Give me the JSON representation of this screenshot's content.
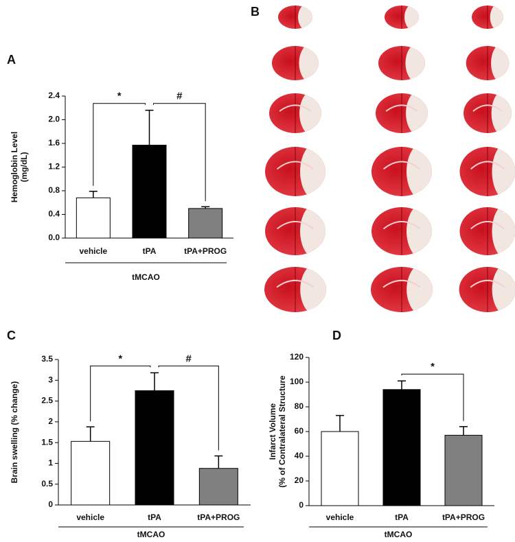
{
  "panel_b": {
    "label": "B"
  },
  "chart_data": [
    {
      "type": "bar",
      "panel": "A",
      "ylabel": [
        "Hemoglobin Level",
        "(mg/dL)"
      ],
      "categories": [
        "vehicle",
        "tPA",
        "tPA+PROG"
      ],
      "values": [
        0.68,
        1.57,
        0.5
      ],
      "errors": [
        0.11,
        0.59,
        0.03
      ],
      "colors": [
        "#ffffff",
        "#000000",
        "#808080"
      ],
      "group_label": "tMCAO",
      "ylim": [
        0,
        2.4
      ],
      "yticks": [
        {
          "value": 0,
          "label": "0.0"
        },
        0.4,
        0.8,
        1.2,
        1.6,
        {
          "value": 2,
          "label": "2.0"
        },
        2.4
      ],
      "annotations": [
        {
          "text": "*",
          "between": [
            "vehicle",
            "tPA"
          ]
        },
        {
          "text": "#",
          "between": [
            "tPA",
            "tPA+PROG"
          ]
        }
      ]
    },
    {
      "type": "bar",
      "panel": "C",
      "ylabel": [
        "Brain swelling (% change)"
      ],
      "categories": [
        "vehicle",
        "tPA",
        "tPA+PROG"
      ],
      "values": [
        1.53,
        2.75,
        0.88
      ],
      "errors": [
        0.35,
        0.43,
        0.3
      ],
      "colors": [
        "#ffffff",
        "#000000",
        "#808080"
      ],
      "group_label": "tMCAO",
      "ylim": [
        0,
        3.5
      ],
      "yticks": [
        0,
        0.5,
        1,
        1.5,
        2,
        2.5,
        3,
        3.5
      ],
      "annotations": [
        {
          "text": "*",
          "between": [
            "vehicle",
            "tPA"
          ]
        },
        {
          "text": "#",
          "between": [
            "tPA",
            "tPA+PROG"
          ]
        }
      ]
    },
    {
      "type": "bar",
      "panel": "D",
      "ylabel": [
        "Infarct Volume",
        "(% of Contralateral Structure"
      ],
      "categories": [
        "vehicle",
        "tPA",
        "tPA+PROG"
      ],
      "values": [
        60,
        94,
        57
      ],
      "errors": [
        13,
        7,
        7
      ],
      "colors": [
        "#ffffff",
        "#000000",
        "#808080"
      ],
      "group_label": "tMCAO",
      "ylim": [
        0,
        120
      ],
      "yticks": [
        0,
        20,
        40,
        60,
        80,
        100,
        120
      ],
      "annotations": [
        {
          "text": "*",
          "between": [
            "tPA",
            "tPA+PROG"
          ]
        }
      ]
    }
  ]
}
